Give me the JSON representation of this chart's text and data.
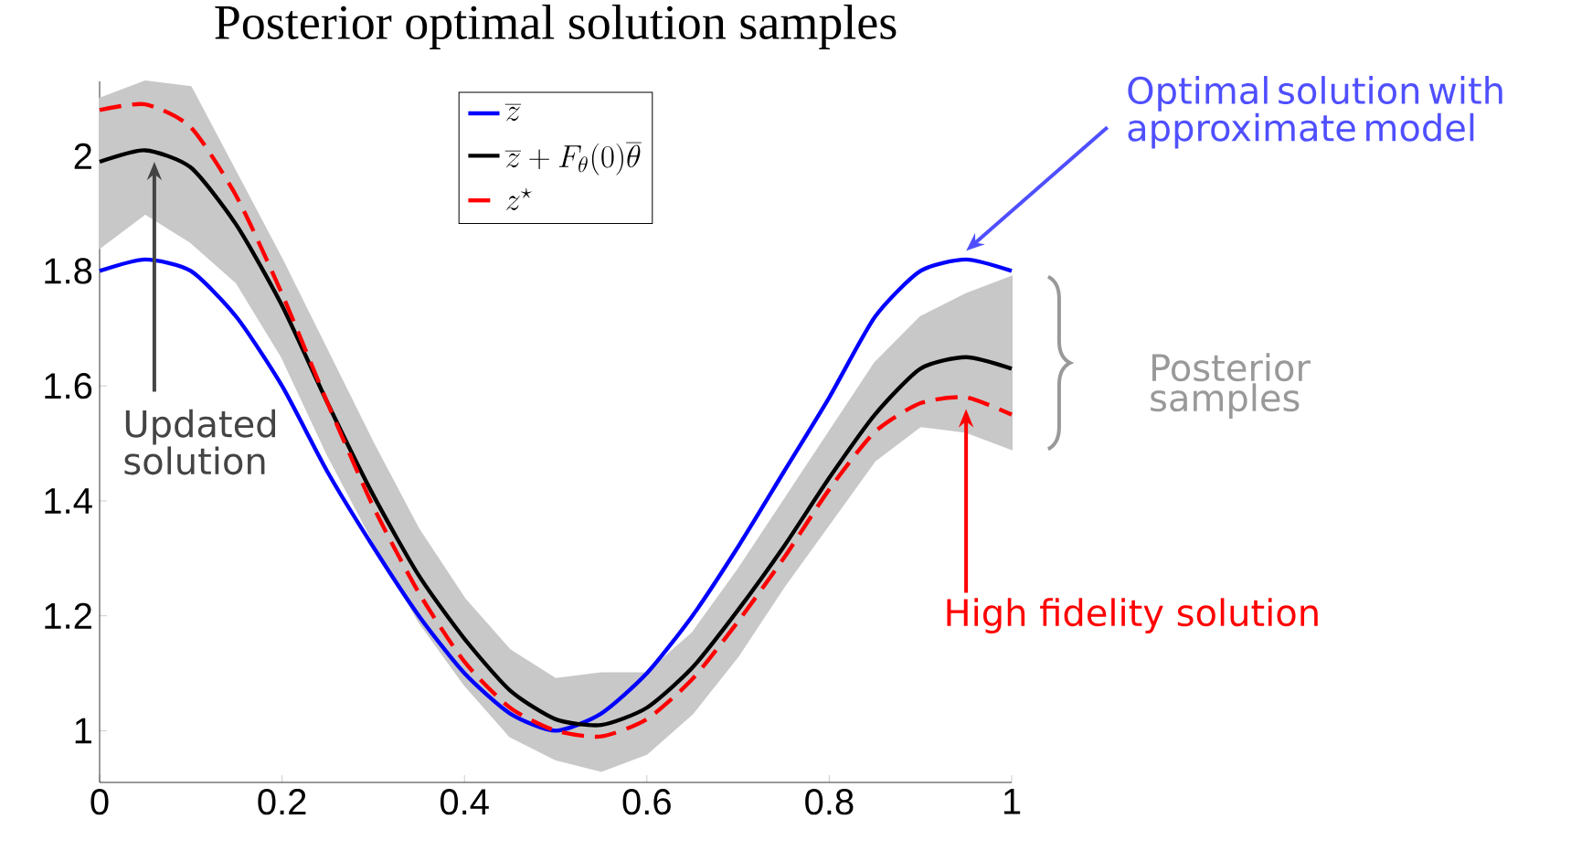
{
  "chart_data": {
    "type": "line",
    "title": "Posterior optimal solution samples",
    "x": [
      0,
      0.05,
      0.1,
      0.15,
      0.2,
      0.25,
      0.3,
      0.35,
      0.4,
      0.45,
      0.5,
      0.55,
      0.6,
      0.65,
      0.7,
      0.75,
      0.8,
      0.85,
      0.9,
      0.95,
      1
    ],
    "series": [
      {
        "name": "\\overline{z}",
        "color": "#0000ff",
        "values": [
          1.8,
          1.82,
          1.8,
          1.72,
          1.6,
          1.45,
          1.32,
          1.2,
          1.1,
          1.03,
          1.0,
          1.03,
          1.1,
          1.2,
          1.32,
          1.45,
          1.58,
          1.72,
          1.8,
          1.82,
          1.8
        ]
      },
      {
        "name": "\\overline{z} + F_\\theta(0)\\overline{\\theta}",
        "color": "#000000",
        "values": [
          1.99,
          2.01,
          1.98,
          1.88,
          1.74,
          1.57,
          1.41,
          1.27,
          1.16,
          1.07,
          1.02,
          1.01,
          1.04,
          1.11,
          1.21,
          1.32,
          1.44,
          1.55,
          1.63,
          1.65,
          1.63
        ],
        "lower": [
          1.84,
          1.9,
          1.85,
          1.78,
          1.65,
          1.48,
          1.33,
          1.19,
          1.08,
          0.99,
          0.95,
          0.93,
          0.96,
          1.03,
          1.13,
          1.25,
          1.36,
          1.47,
          1.53,
          1.52,
          1.49
        ],
        "upper": [
          2.1,
          2.13,
          2.12,
          1.97,
          1.82,
          1.66,
          1.5,
          1.35,
          1.23,
          1.14,
          1.09,
          1.1,
          1.1,
          1.17,
          1.28,
          1.4,
          1.52,
          1.64,
          1.72,
          1.76,
          1.79
        ]
      },
      {
        "name": "z^\\star",
        "color": "#ff0000",
        "line_style": "dashed",
        "values": [
          2.08,
          2.09,
          2.05,
          1.93,
          1.76,
          1.57,
          1.39,
          1.24,
          1.12,
          1.04,
          1.0,
          0.99,
          1.02,
          1.09,
          1.19,
          1.3,
          1.42,
          1.52,
          1.57,
          1.58,
          1.55
        ]
      }
    ],
    "annotations": [
      "Optimal solution with approximate model",
      "Posterior samples",
      "Updated solution",
      "High fidelity solution"
    ],
    "xlim": [
      0,
      1
    ],
    "ylim": [
      0.91,
      2.13
    ],
    "xticks": [
      0,
      0.2,
      0.4,
      0.6,
      0.8,
      1
    ],
    "yticks": [
      1,
      1.2,
      1.4,
      1.6,
      1.8,
      2
    ],
    "grid": false,
    "legend": "top",
    "marker": "none"
  }
}
